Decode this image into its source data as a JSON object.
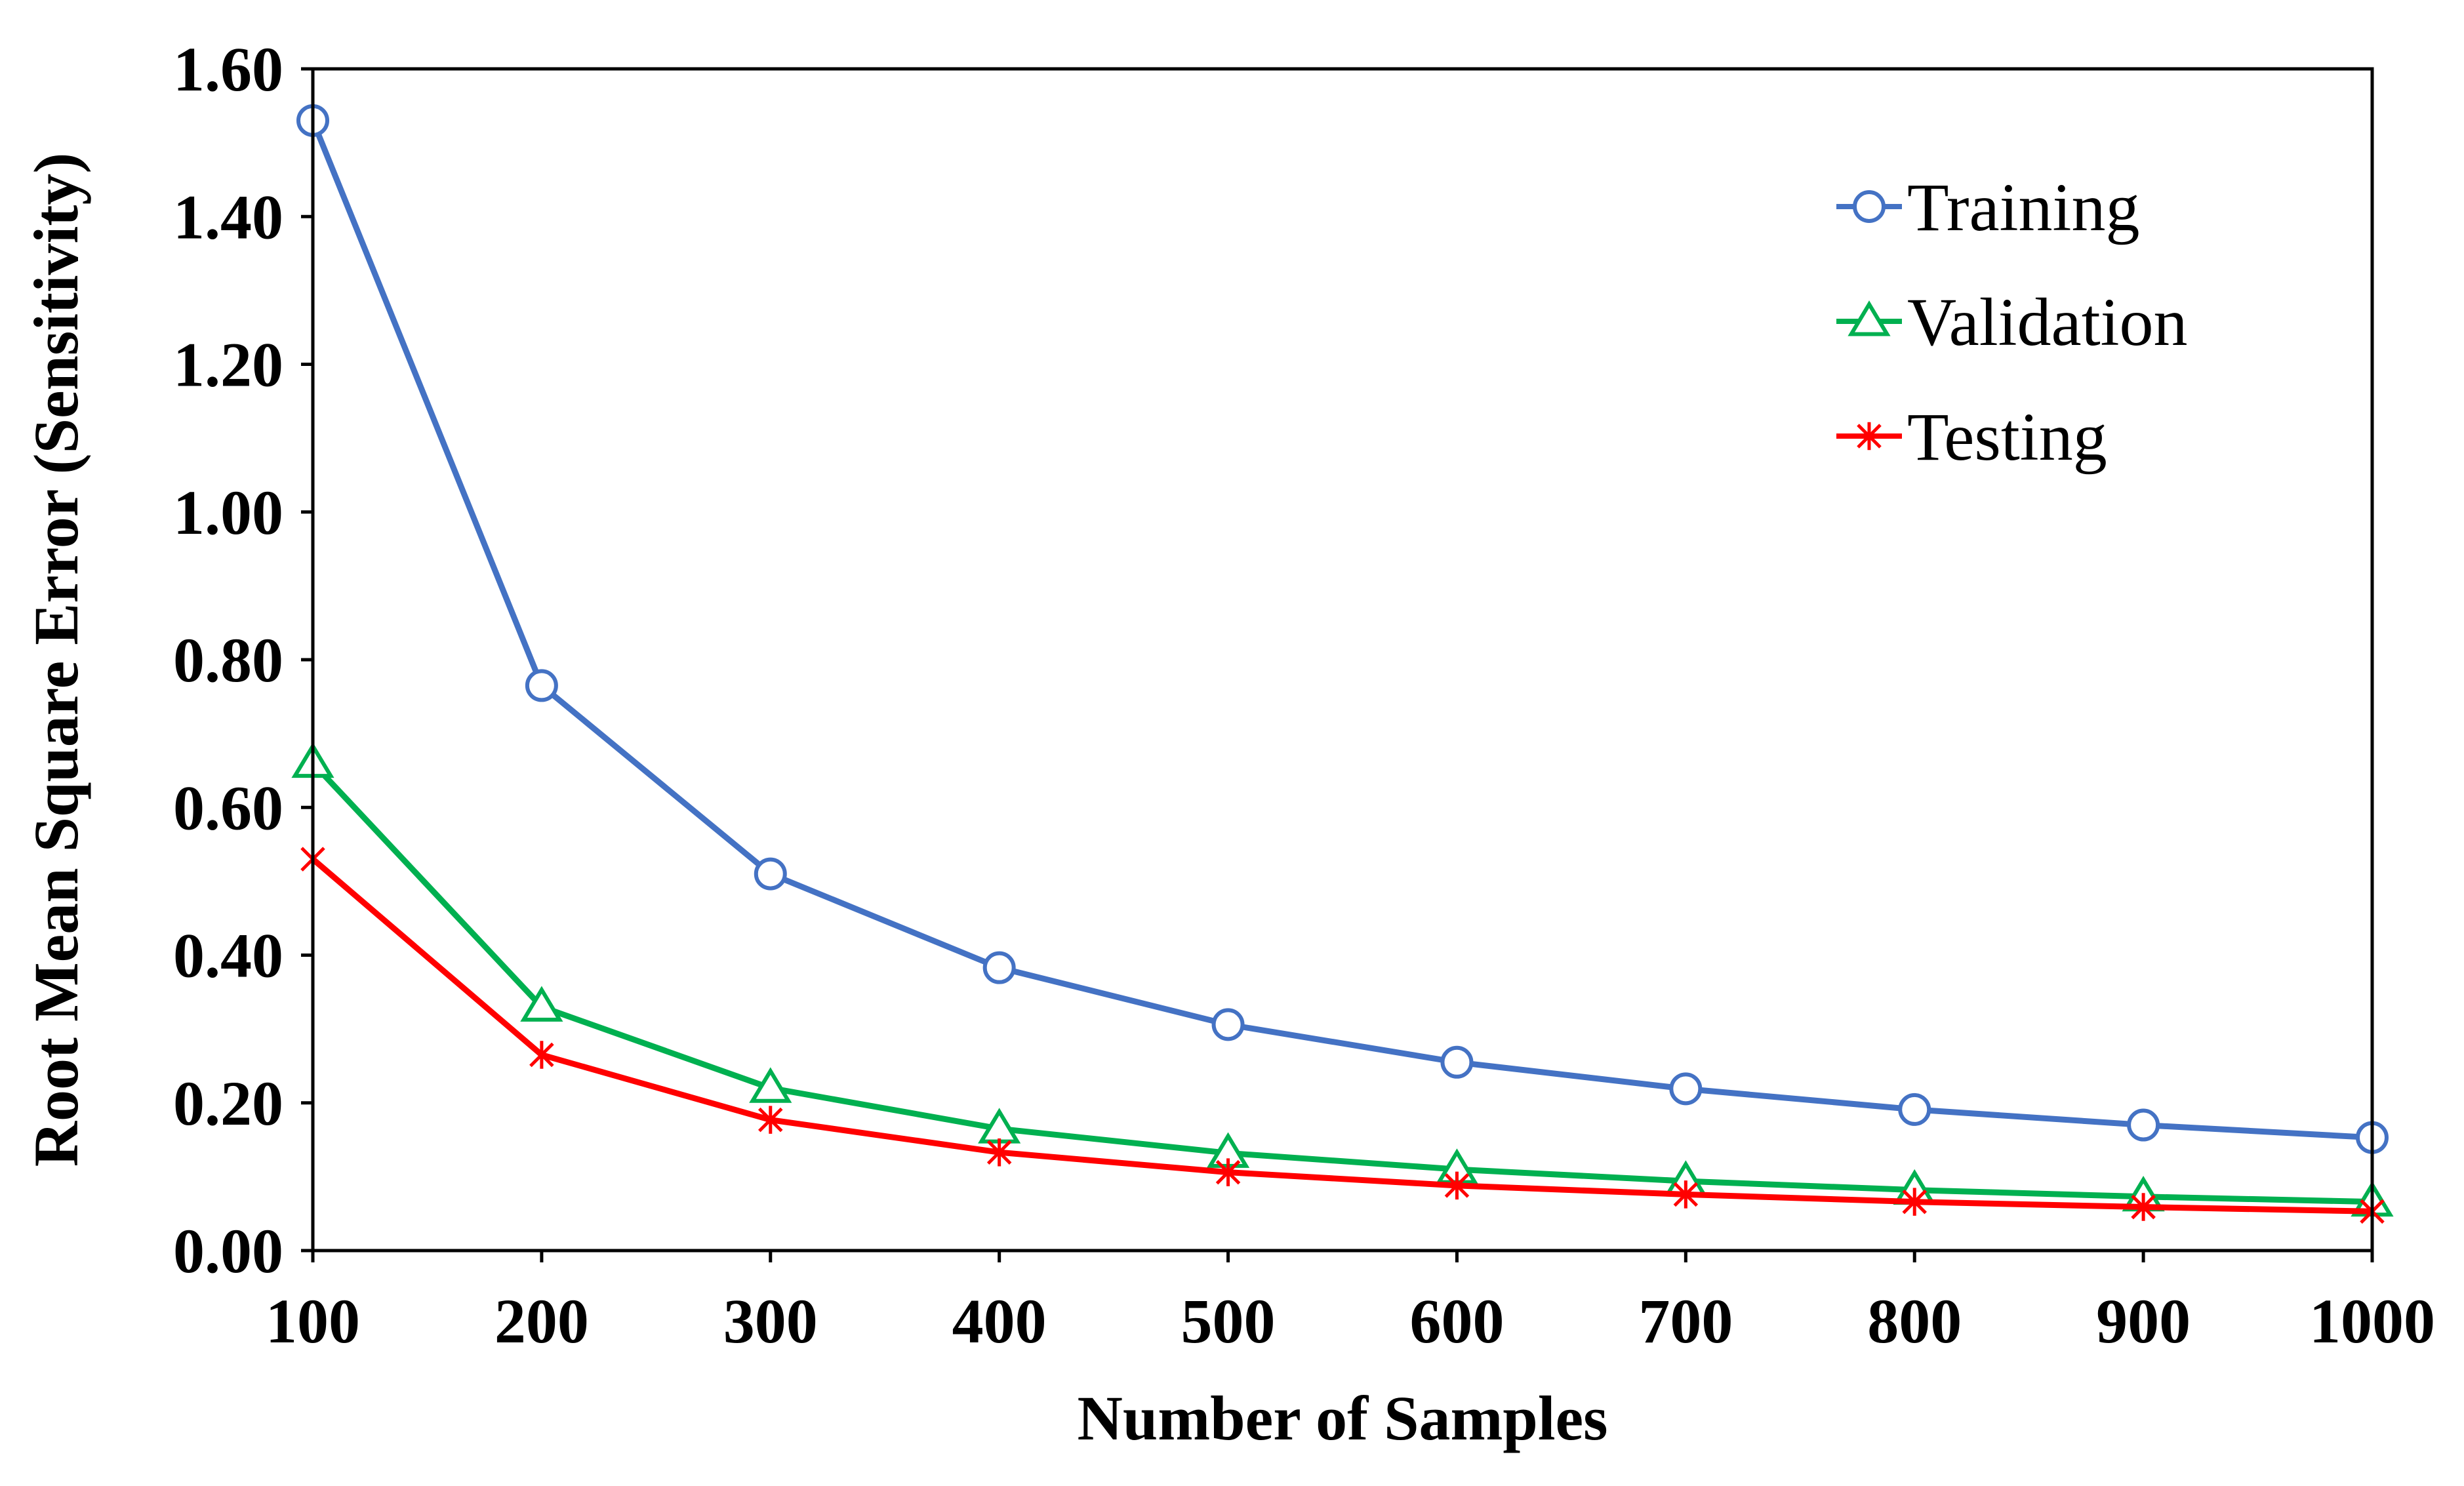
{
  "chart_data": {
    "type": "line",
    "title": "",
    "xlabel": "Number of Samples",
    "ylabel": "Root Mean Square Error (Sensitivity)",
    "x": [
      100,
      200,
      300,
      400,
      500,
      600,
      700,
      800,
      900,
      1000
    ],
    "xlim": [
      100,
      1000
    ],
    "ylim": [
      0,
      1.6
    ],
    "x_ticks": [
      "100",
      "200",
      "300",
      "400",
      "500",
      "600",
      "700",
      "800",
      "900",
      "1000"
    ],
    "y_ticks": [
      "0.00",
      "0.20",
      "0.40",
      "0.60",
      "0.80",
      "1.00",
      "1.20",
      "1.40",
      "1.60"
    ],
    "y_tick_values": [
      0,
      0.2,
      0.4,
      0.6,
      0.8,
      1.0,
      1.2,
      1.4,
      1.6
    ],
    "grid": false,
    "legend_position": "top-right",
    "series": [
      {
        "name": "Training",
        "color": "#4472C4",
        "marker": "circle",
        "values": [
          1.53,
          0.765,
          0.51,
          0.383,
          0.306,
          0.255,
          0.219,
          0.191,
          0.17,
          0.153
        ]
      },
      {
        "name": "Validation",
        "color": "#00B050",
        "marker": "triangle",
        "values": [
          0.66,
          0.33,
          0.22,
          0.165,
          0.132,
          0.11,
          0.094,
          0.082,
          0.073,
          0.066
        ]
      },
      {
        "name": "Testing",
        "color": "#FF0000",
        "marker": "star",
        "values": [
          0.53,
          0.265,
          0.177,
          0.133,
          0.106,
          0.088,
          0.076,
          0.066,
          0.059,
          0.053
        ]
      }
    ]
  }
}
